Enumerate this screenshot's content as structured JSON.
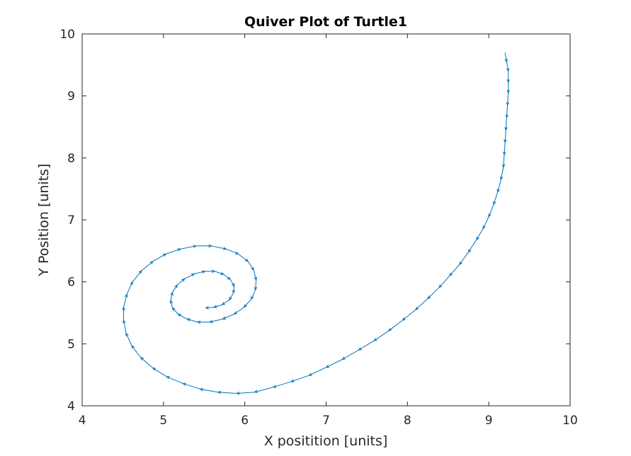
{
  "chart_data": {
    "type": "quiver",
    "title": "Quiver Plot of Turtle1",
    "xlabel": "X positition [units]",
    "ylabel": "Y Position [units]",
    "xlim": [
      4,
      10
    ],
    "ylim": [
      4,
      10
    ],
    "xticks": [
      "4",
      "5",
      "6",
      "7",
      "8",
      "9",
      "10"
    ],
    "yticks": [
      "4",
      "5",
      "6",
      "7",
      "8",
      "9",
      "10"
    ],
    "grid": false,
    "box": true,
    "color": "#0072BD",
    "points": [
      [
        9.2,
        9.7
      ],
      [
        9.22,
        9.55
      ],
      [
        9.24,
        9.4
      ],
      [
        9.24,
        9.22
      ],
      [
        9.24,
        9.05
      ],
      [
        9.23,
        8.85
      ],
      [
        9.22,
        8.65
      ],
      [
        9.21,
        8.45
      ],
      [
        9.2,
        8.25
      ],
      [
        9.19,
        8.05
      ],
      [
        9.18,
        7.85
      ],
      [
        9.15,
        7.65
      ],
      [
        9.11,
        7.45
      ],
      [
        9.06,
        7.25
      ],
      [
        9.0,
        7.05
      ],
      [
        8.93,
        6.86
      ],
      [
        8.85,
        6.68
      ],
      [
        8.75,
        6.48
      ],
      [
        8.64,
        6.28
      ],
      [
        8.52,
        6.1
      ],
      [
        8.39,
        5.91
      ],
      [
        8.25,
        5.73
      ],
      [
        8.1,
        5.55
      ],
      [
        7.94,
        5.38
      ],
      [
        7.77,
        5.21
      ],
      [
        7.59,
        5.05
      ],
      [
        7.4,
        4.9
      ],
      [
        7.2,
        4.75
      ],
      [
        7.0,
        4.62
      ],
      [
        6.79,
        4.49
      ],
      [
        6.57,
        4.39
      ],
      [
        6.35,
        4.3
      ],
      [
        6.12,
        4.22
      ],
      [
        5.9,
        4.2
      ],
      [
        5.67,
        4.22
      ],
      [
        5.45,
        4.27
      ],
      [
        5.24,
        4.36
      ],
      [
        5.04,
        4.47
      ],
      [
        4.87,
        4.61
      ],
      [
        4.72,
        4.78
      ],
      [
        4.61,
        4.97
      ],
      [
        4.54,
        5.17
      ],
      [
        4.51,
        5.38
      ],
      [
        4.51,
        5.59
      ],
      [
        4.55,
        5.8
      ],
      [
        4.62,
        6.0
      ],
      [
        4.73,
        6.18
      ],
      [
        4.87,
        6.33
      ],
      [
        5.03,
        6.45
      ],
      [
        5.21,
        6.53
      ],
      [
        5.4,
        6.58
      ],
      [
        5.59,
        6.58
      ],
      [
        5.77,
        6.53
      ],
      [
        5.92,
        6.45
      ],
      [
        6.04,
        6.33
      ],
      [
        6.11,
        6.19
      ],
      [
        6.14,
        6.03
      ],
      [
        6.13,
        5.87
      ],
      [
        6.08,
        5.72
      ],
      [
        5.99,
        5.59
      ],
      [
        5.87,
        5.48
      ],
      [
        5.73,
        5.4
      ],
      [
        5.57,
        5.35
      ],
      [
        5.42,
        5.35
      ],
      [
        5.29,
        5.4
      ],
      [
        5.18,
        5.48
      ],
      [
        5.11,
        5.58
      ],
      [
        5.09,
        5.7
      ],
      [
        5.11,
        5.83
      ],
      [
        5.17,
        5.95
      ],
      [
        5.26,
        6.05
      ],
      [
        5.38,
        6.13
      ],
      [
        5.51,
        6.17
      ],
      [
        5.63,
        6.17
      ],
      [
        5.74,
        6.12
      ],
      [
        5.82,
        6.04
      ],
      [
        5.87,
        5.93
      ],
      [
        5.86,
        5.82
      ],
      [
        5.81,
        5.71
      ],
      [
        5.72,
        5.63
      ],
      [
        5.62,
        5.59
      ],
      [
        5.52,
        5.58
      ]
    ]
  }
}
